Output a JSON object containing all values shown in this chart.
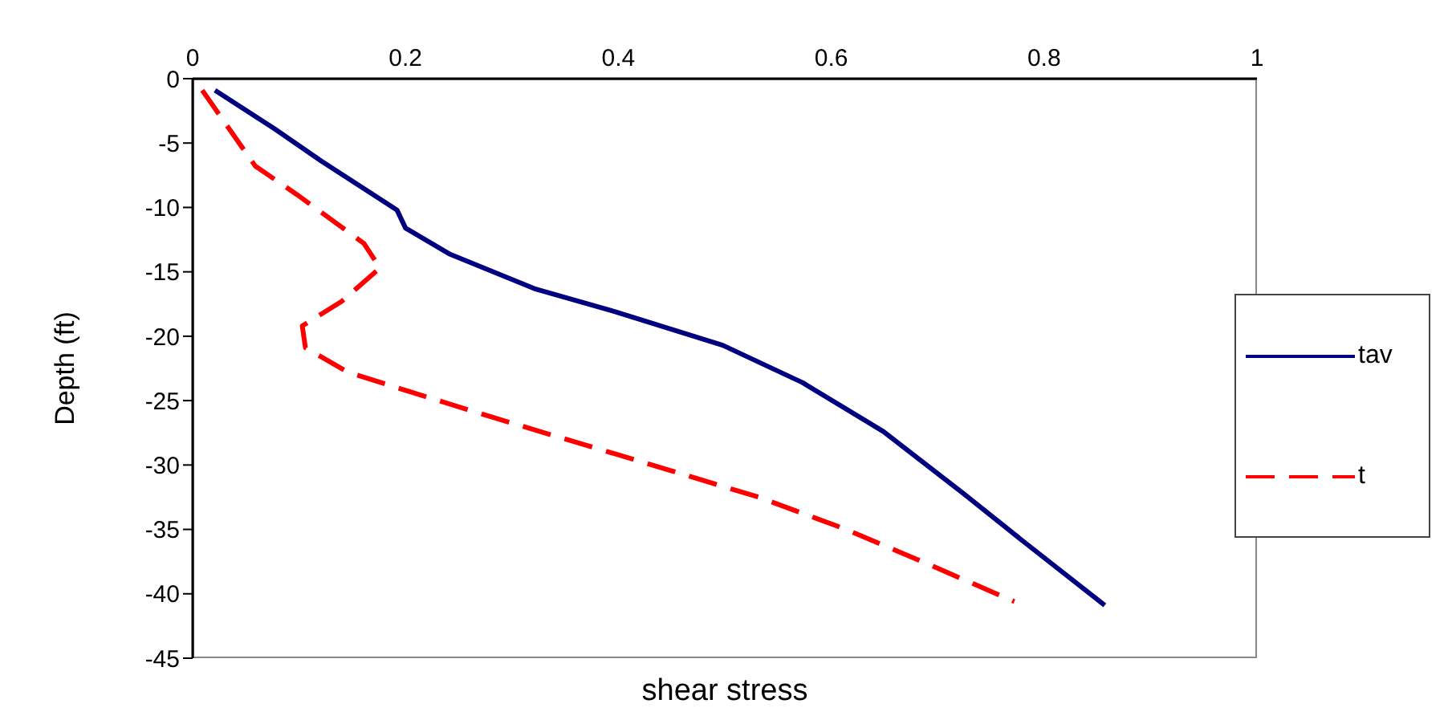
{
  "chart_data": {
    "type": "line",
    "xlabel": "shear stress",
    "ylabel": "Depth (ft)",
    "xlim": [
      0,
      1
    ],
    "xticks": [
      0,
      0.2,
      0.4,
      0.6,
      0.8,
      1
    ],
    "ylim": [
      -45,
      0
    ],
    "yticks": [
      0,
      -5,
      -10,
      -15,
      -20,
      -25,
      -30,
      -35,
      -40,
      -45
    ],
    "grid": false,
    "legend": "right",
    "marker": "none",
    "series": [
      {
        "name": "tav",
        "color": "#000080",
        "line_style": "solid",
        "x": [
          0.021,
          0.077,
          0.121,
          0.192,
          0.2,
          0.241,
          0.321,
          0.397,
          0.498,
          0.573,
          0.649,
          0.724,
          0.78,
          0.857
        ],
        "values": [
          -0.9,
          -3.9,
          -6.4,
          -10.2,
          -11.6,
          -13.6,
          -16.3,
          -18.1,
          -20.7,
          -23.6,
          -27.4,
          -32.2,
          -35.9,
          -40.9
        ]
      },
      {
        "name": "t",
        "color": "#ff0000",
        "line_style": "dashed",
        "x": [
          0.009,
          0.059,
          0.098,
          0.161,
          0.176,
          0.14,
          0.103,
          0.106,
          0.146,
          0.2,
          0.282,
          0.367,
          0.448,
          0.532,
          0.614,
          0.694,
          0.772
        ],
        "values": [
          -0.9,
          -6.8,
          -9,
          -12.8,
          -14.7,
          -17.3,
          -19.2,
          -20.9,
          -22.8,
          -24.2,
          -26.3,
          -28.4,
          -30.4,
          -32.5,
          -35,
          -37.8,
          -40.6
        ]
      }
    ]
  }
}
